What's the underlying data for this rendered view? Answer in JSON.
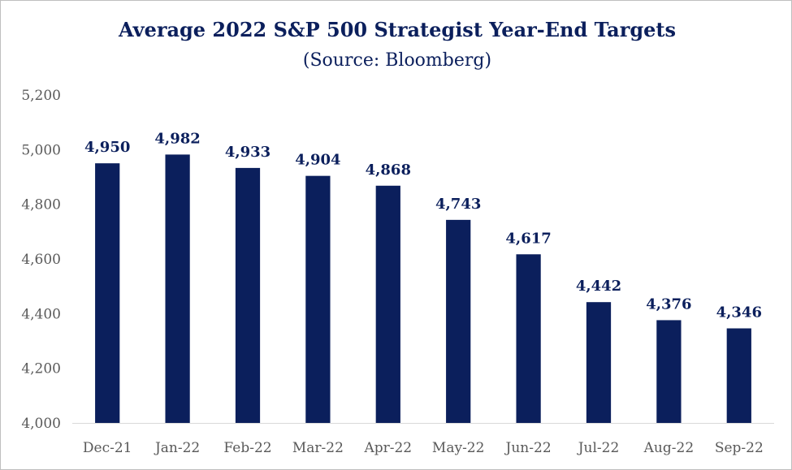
{
  "chart_data": {
    "type": "bar",
    "title": "Average 2022 S&P 500 Strategist Year-End Targets",
    "subtitle": "(Source: Bloomberg)",
    "xlabel": "",
    "ylabel": "",
    "categories": [
      "Dec-21",
      "Jan-22",
      "Feb-22",
      "Mar-22",
      "Apr-22",
      "May-22",
      "Jun-22",
      "Jul-22",
      "Aug-22",
      "Sep-22"
    ],
    "values": [
      4950,
      4982,
      4933,
      4904,
      4868,
      4743,
      4617,
      4442,
      4376,
      4346
    ],
    "data_labels": [
      "4,950",
      "4,982",
      "4,933",
      "4,904",
      "4,868",
      "4,743",
      "4,617",
      "4,442",
      "4,376",
      "4,346"
    ],
    "ylim": [
      4000,
      5200
    ],
    "yticks": [
      4000,
      4200,
      4400,
      4600,
      4800,
      5000,
      5200
    ],
    "ytick_labels": [
      "4,000",
      "4,200",
      "4,400",
      "4,600",
      "4,800",
      "5,000",
      "5,200"
    ],
    "grid": false,
    "legend": "none",
    "colors": {
      "bar": "#0b1f5c",
      "label": "#0b1f5c",
      "axis": "#d9d9d9",
      "tick_text": "#595959"
    }
  }
}
